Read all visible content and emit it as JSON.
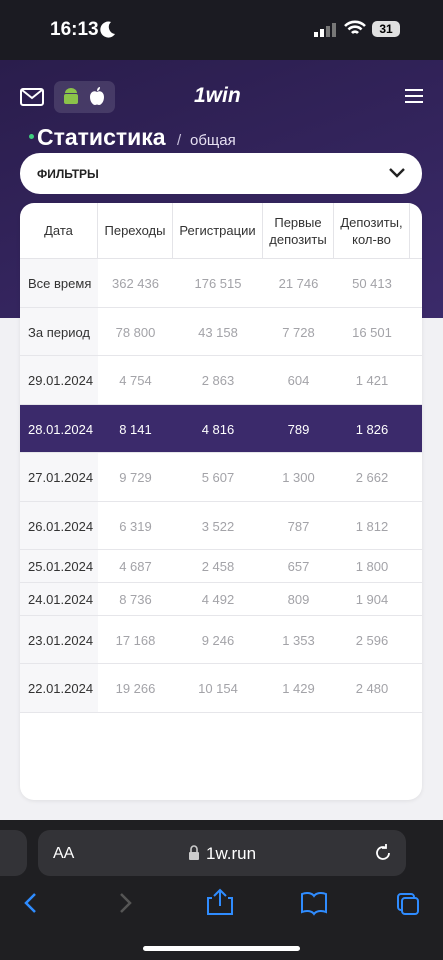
{
  "status_bar": {
    "time": "16:13",
    "battery": "31"
  },
  "header": {
    "logo": "1win",
    "title": "Статистика",
    "separator": "/",
    "subtitle": "общая"
  },
  "filters": {
    "label": "ФИЛЬТРЫ"
  },
  "table": {
    "columns": [
      "Дата",
      "Переходы",
      "Регистрации",
      "Первые депозиты",
      "Депозиты, кол-во"
    ],
    "rows": [
      {
        "label": "Все время",
        "values": [
          "362 436",
          "176 515",
          "21 746",
          "50 413"
        ]
      },
      {
        "label": "За период",
        "values": [
          "78 800",
          "43 158",
          "7 728",
          "16 501"
        ]
      },
      {
        "label": "29.01.2024",
        "values": [
          "4 754",
          "2 863",
          "604",
          "1 421"
        ]
      },
      {
        "label": "28.01.2024",
        "values": [
          "8 141",
          "4 816",
          "789",
          "1 826"
        ],
        "highlighted": true
      },
      {
        "label": "27.01.2024",
        "values": [
          "9 729",
          "5 607",
          "1 300",
          "2 662"
        ]
      },
      {
        "label": "26.01.2024",
        "values": [
          "6 319",
          "3 522",
          "787",
          "1 812"
        ]
      },
      {
        "label": "25.01.2024",
        "values": [
          "4 687",
          "2 458",
          "657",
          "1 800"
        ]
      },
      {
        "label": "24.01.2024",
        "values": [
          "8 736",
          "4 492",
          "809",
          "1 904"
        ]
      },
      {
        "label": "23.01.2024",
        "values": [
          "17 168",
          "9 246",
          "1 353",
          "2 596"
        ]
      },
      {
        "label": "22.01.2024",
        "values": [
          "19 266",
          "10 154",
          "1 429",
          "2 480"
        ]
      }
    ]
  },
  "browser_bar": {
    "text_size": "AA",
    "url": "1w.run"
  }
}
